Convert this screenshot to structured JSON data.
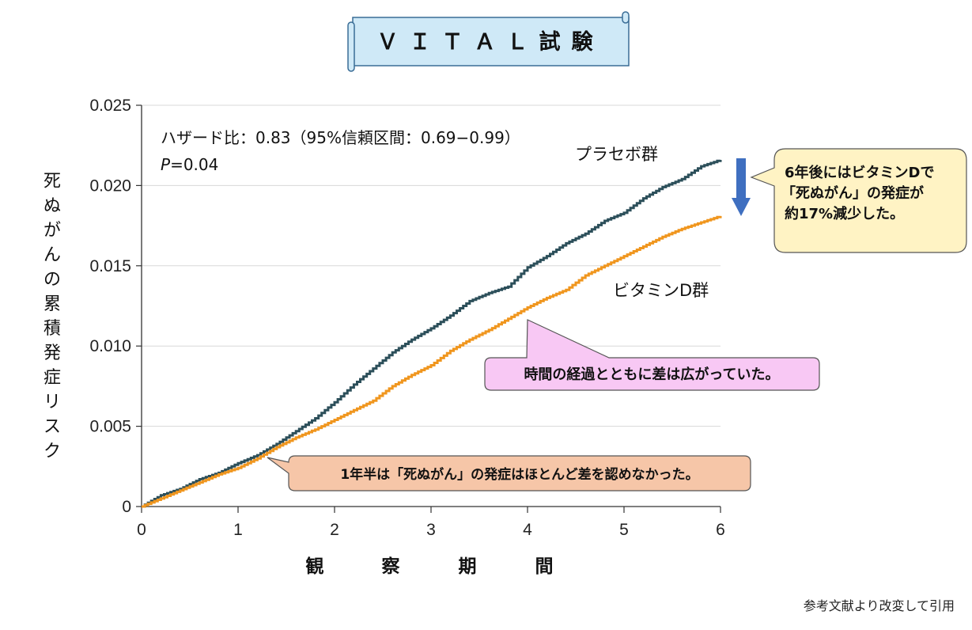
{
  "title": "ＶＩＴＡＬ試験",
  "source_note": "参考文献より改変して引用",
  "stats": {
    "line1": "ハザード比：0.83（95%信頼区間：0.69−0.99）",
    "p_label": "P",
    "p_value": "=0.04"
  },
  "callouts": {
    "result": [
      "6年後にはビタミンDで",
      "「死ぬがん」の発症が",
      "約17%減少した。"
    ],
    "gap": "時間の経過とともに差は広がっていた。",
    "early": "1年半は「死ぬがん」の発症はほとんど差を認めなかった。"
  },
  "colors": {
    "placebo": "#2c4f5a",
    "vitamin_d": "#f0961e",
    "grid": "#d8d8d8",
    "title_box": "#cfe9f7",
    "result_box": "#fff3c4",
    "gap_box": "#f8c8f4",
    "early_box": "#f6c6a8",
    "arrow": "#3f6fc0"
  },
  "chart_data": {
    "type": "line",
    "xlabel": "観察期間",
    "ylabel": "死ぬがんの累積発症リスク",
    "xlim": [
      0,
      6
    ],
    "ylim": [
      0,
      0.025
    ],
    "x_ticks": [
      "0",
      "1",
      "2",
      "3",
      "4",
      "5",
      "6"
    ],
    "y_ticks": [
      "0",
      "0.005",
      "0.010",
      "0.015",
      "0.020",
      "0.025"
    ],
    "grid": "horizontal",
    "series": [
      {
        "name": "プラセボ群",
        "x": [
          0,
          0.2,
          0.4,
          0.6,
          0.8,
          1.0,
          1.2,
          1.4,
          1.6,
          1.8,
          2.0,
          2.2,
          2.4,
          2.6,
          2.8,
          3.0,
          3.2,
          3.4,
          3.6,
          3.8,
          4.0,
          4.2,
          4.4,
          4.6,
          4.8,
          5.0,
          5.2,
          5.4,
          5.6,
          5.8,
          6.0
        ],
        "y": [
          0,
          0.0007,
          0.0011,
          0.0017,
          0.0021,
          0.0027,
          0.0032,
          0.0039,
          0.0047,
          0.0055,
          0.0065,
          0.0076,
          0.0086,
          0.0096,
          0.0104,
          0.0111,
          0.0119,
          0.0128,
          0.0133,
          0.0137,
          0.0149,
          0.0156,
          0.0164,
          0.017,
          0.0178,
          0.0183,
          0.0192,
          0.0199,
          0.0204,
          0.0212,
          0.0216
        ]
      },
      {
        "name": "ビタミンD群",
        "x": [
          0,
          0.2,
          0.4,
          0.6,
          0.8,
          1.0,
          1.2,
          1.4,
          1.6,
          1.8,
          2.0,
          2.2,
          2.4,
          2.6,
          2.8,
          3.0,
          3.2,
          3.4,
          3.6,
          3.8,
          4.0,
          4.2,
          4.4,
          4.6,
          4.8,
          5.0,
          5.2,
          5.4,
          5.6,
          5.8,
          6.0
        ],
        "y": [
          0,
          0.0005,
          0.001,
          0.0015,
          0.002,
          0.0024,
          0.003,
          0.0037,
          0.0043,
          0.0048,
          0.0054,
          0.006,
          0.0066,
          0.0075,
          0.0082,
          0.0088,
          0.0097,
          0.0104,
          0.011,
          0.0117,
          0.0124,
          0.013,
          0.0135,
          0.0144,
          0.015,
          0.0156,
          0.0162,
          0.0168,
          0.0173,
          0.0177,
          0.0181
        ]
      }
    ]
  }
}
